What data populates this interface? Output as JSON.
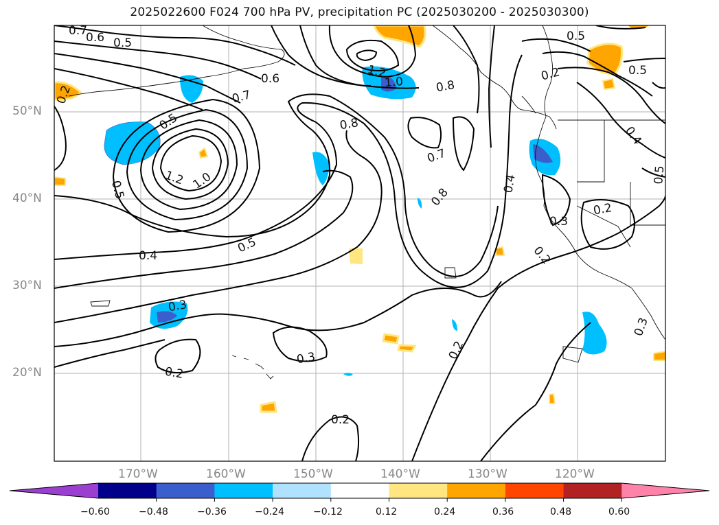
{
  "title": "2025022600 F024 700 hPa PV, precipitation PC (2025030200 - 2025030300)",
  "lat_labels": [
    "50°N",
    "40°N",
    "30°N",
    "20°N"
  ],
  "lon_labels": [
    "170°W",
    "160°W",
    "150°W",
    "140°W",
    "130°W",
    "120°W"
  ],
  "colorbar": {
    "ticks": [
      "−0.60",
      "−0.48",
      "−0.36",
      "−0.24",
      "−0.12",
      "0.12",
      "0.24",
      "0.36",
      "0.48",
      "0.60"
    ],
    "colors": [
      "#9b3fd0",
      "#00008b",
      "#3a5fcd",
      "#00bfff",
      "#b0e2ff",
      "#ffffff",
      "#ffe680",
      "#ffa500",
      "#ff4500",
      "#b22222",
      "#ff82ab"
    ]
  },
  "contour_labels": [
    "0.7",
    "0.6",
    "0.5",
    "0.2",
    "1.2",
    "1.0",
    "0.5",
    "0.5",
    "0.2",
    "0.6",
    "0.7",
    "0.8",
    "0.8",
    "0.3",
    "1.2",
    "1.0",
    "0.7",
    "0.8",
    "0.4",
    "0.4",
    "0.5",
    "0.5",
    "0.2",
    "0.3",
    "0.2",
    "0.3",
    "0.2",
    "0.3",
    "0.2",
    "0.2",
    "0.3",
    "0.2"
  ]
}
